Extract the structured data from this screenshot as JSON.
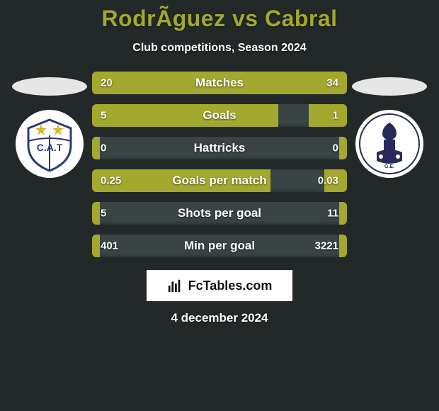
{
  "background_color": "#232929",
  "title": "RodrÃ­guez vs Cabral",
  "title_color": "#a3a82f",
  "subtitle": "Club competitions, Season 2024",
  "subtitle_color": "#ffffff",
  "date": "4 december 2024",
  "date_color": "#ffffff",
  "players": {
    "left": {
      "ellipse_color": "#e6e6e6",
      "crest_bg": "#ffffff",
      "crest_accent": "#2a3a7a",
      "crest_stars": "#d6b72a",
      "crest_text": "C.A.T"
    },
    "right": {
      "ellipse_color": "#e6e6e6",
      "crest_bg": "#ffffff",
      "crest_accent": "#2a2a5a"
    }
  },
  "bars": {
    "bg_color": "#3a4444",
    "fill_color": "#a3a82f",
    "label_color": "#ffffff",
    "value_color": "#ffffff",
    "rows": [
      {
        "label": "Matches",
        "left_val": "20",
        "right_val": "34",
        "left_pct": 37,
        "right_pct": 63
      },
      {
        "label": "Goals",
        "left_val": "5",
        "right_val": "1",
        "left_pct": 73,
        "right_pct": 15
      },
      {
        "label": "Hattricks",
        "left_val": "0",
        "right_val": "0",
        "left_pct": 3,
        "right_pct": 3
      },
      {
        "label": "Goals per match",
        "left_val": "0.25",
        "right_val": "0.03",
        "left_pct": 70,
        "right_pct": 9
      },
      {
        "label": "Shots per goal",
        "left_val": "5",
        "right_val": "11",
        "left_pct": 3,
        "right_pct": 3
      },
      {
        "label": "Min per goal",
        "left_val": "401",
        "right_val": "3221",
        "left_pct": 3,
        "right_pct": 3
      }
    ]
  },
  "watermark": {
    "bg_color": "#ffffff",
    "icon_color": "#111111",
    "text": "FcTables.com",
    "text_color": "#111111"
  }
}
